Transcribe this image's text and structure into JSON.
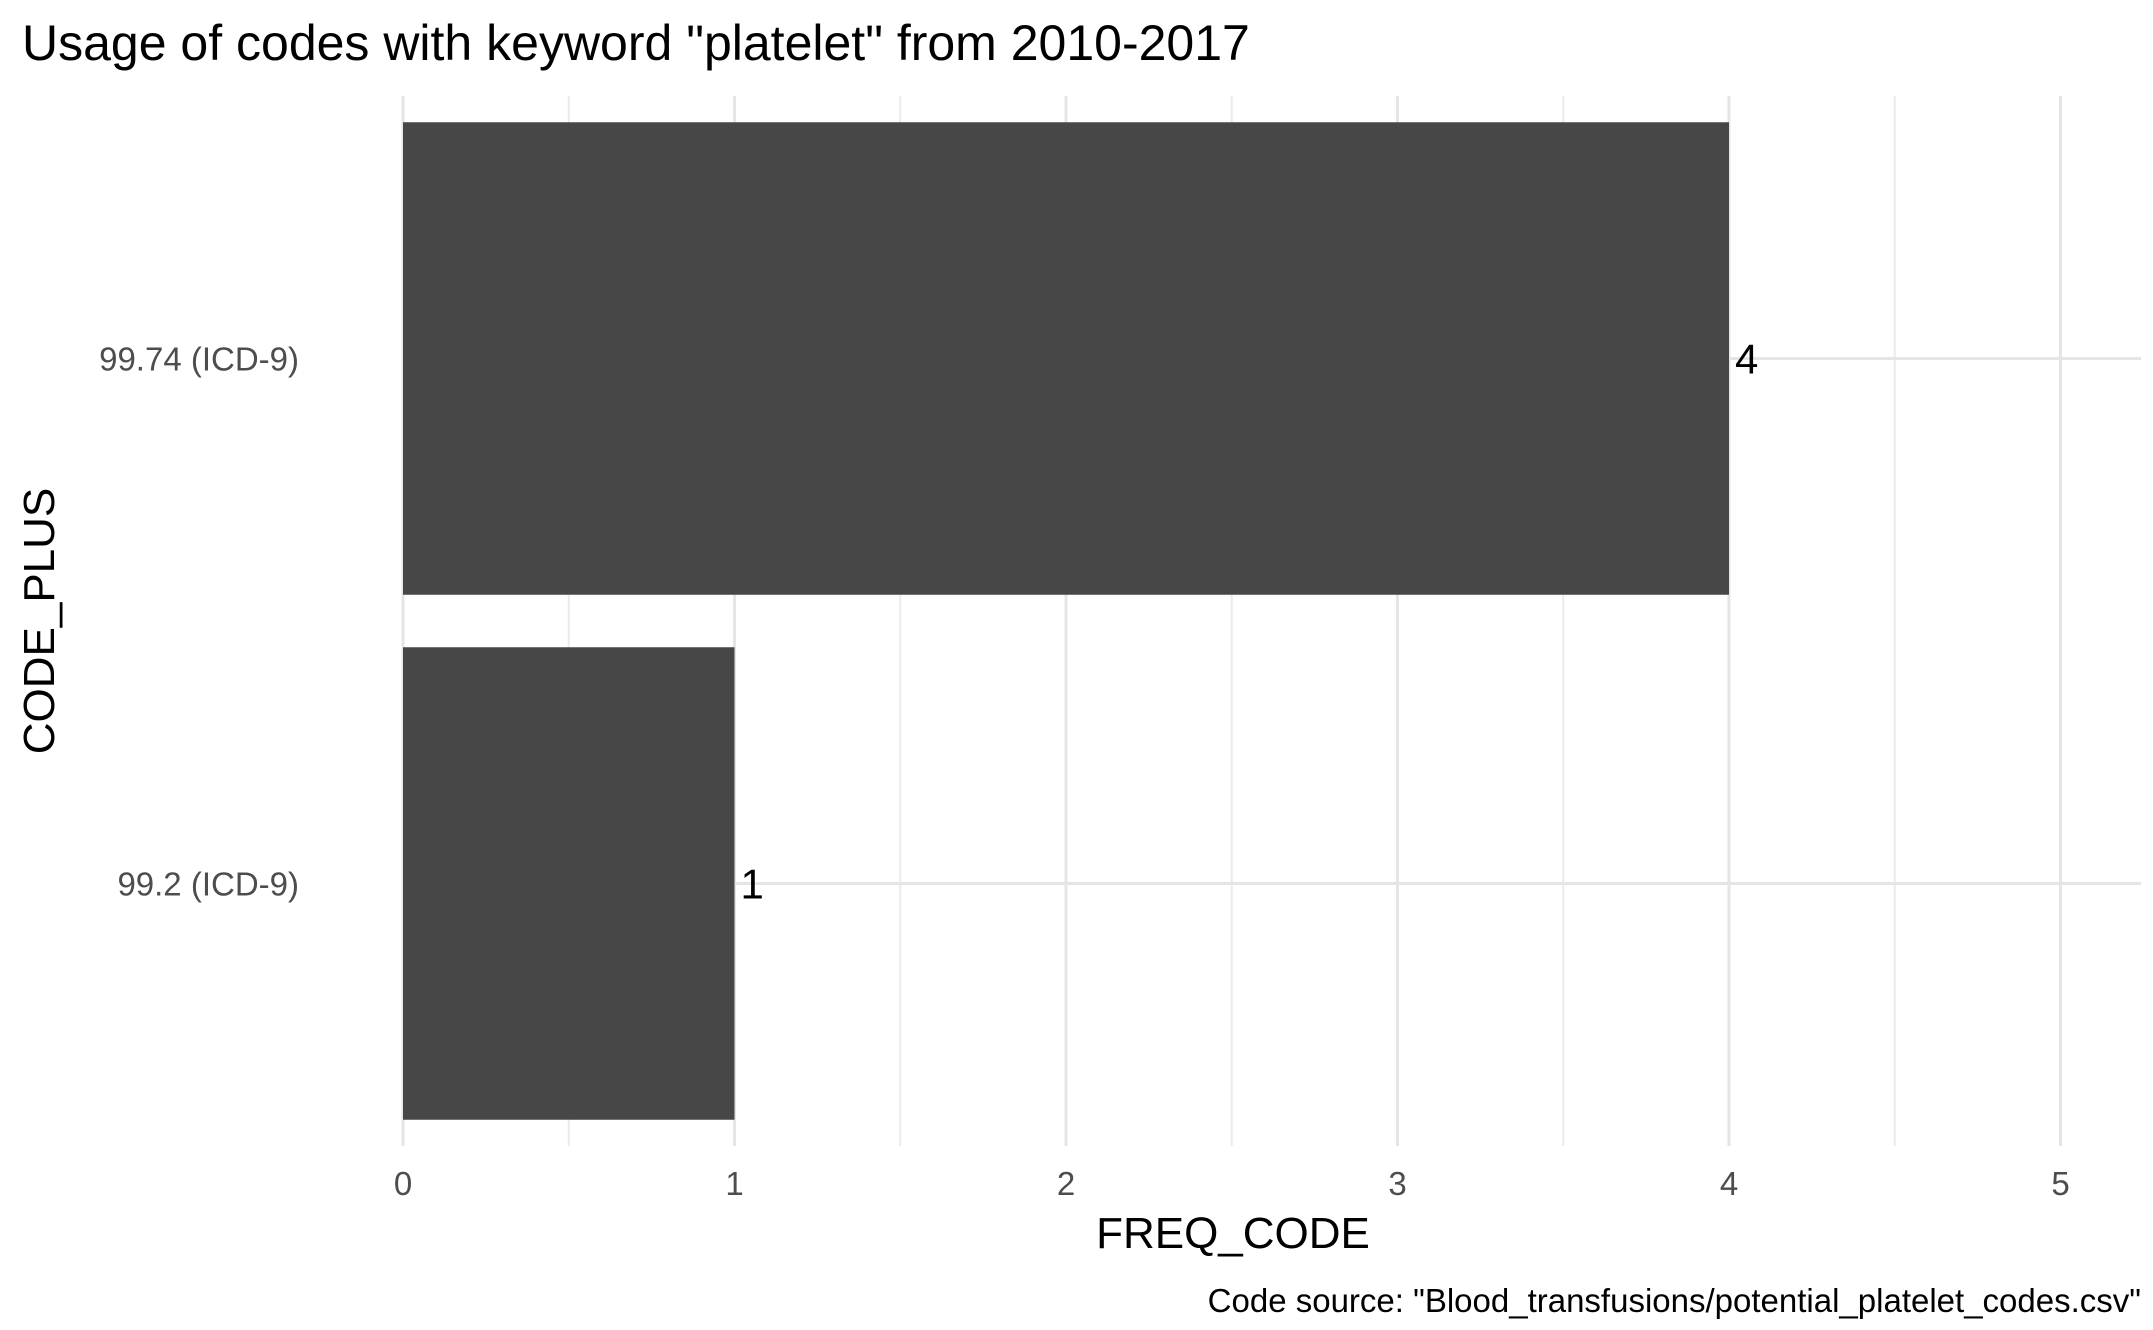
{
  "chart_data": {
    "type": "bar",
    "orientation": "horizontal",
    "title": "Usage of codes with keyword \"platelet\" from 2010-2017",
    "xlabel": "FREQ_CODE",
    "ylabel": "CODE_PLUS",
    "caption": "Code source: \"Blood_transfusions/potential_platelet_codes.csv\"",
    "categories": [
      "99.2 (ICD-9)",
      "99.74 (ICD-9)"
    ],
    "values": [
      1,
      4
    ],
    "data_labels": [
      "1",
      "4"
    ],
    "xlim": [
      0,
      5
    ],
    "x_ticks": [
      "0",
      "1",
      "2",
      "3",
      "4",
      "5"
    ],
    "grid": true,
    "legend": "none",
    "colors": {
      "bar": "#474747",
      "grid_major": "#e5e5e5",
      "grid_minor": "#ebebeb",
      "tick_text": "#4d4d4d",
      "text": "#000000",
      "background": "#ffffff"
    }
  }
}
